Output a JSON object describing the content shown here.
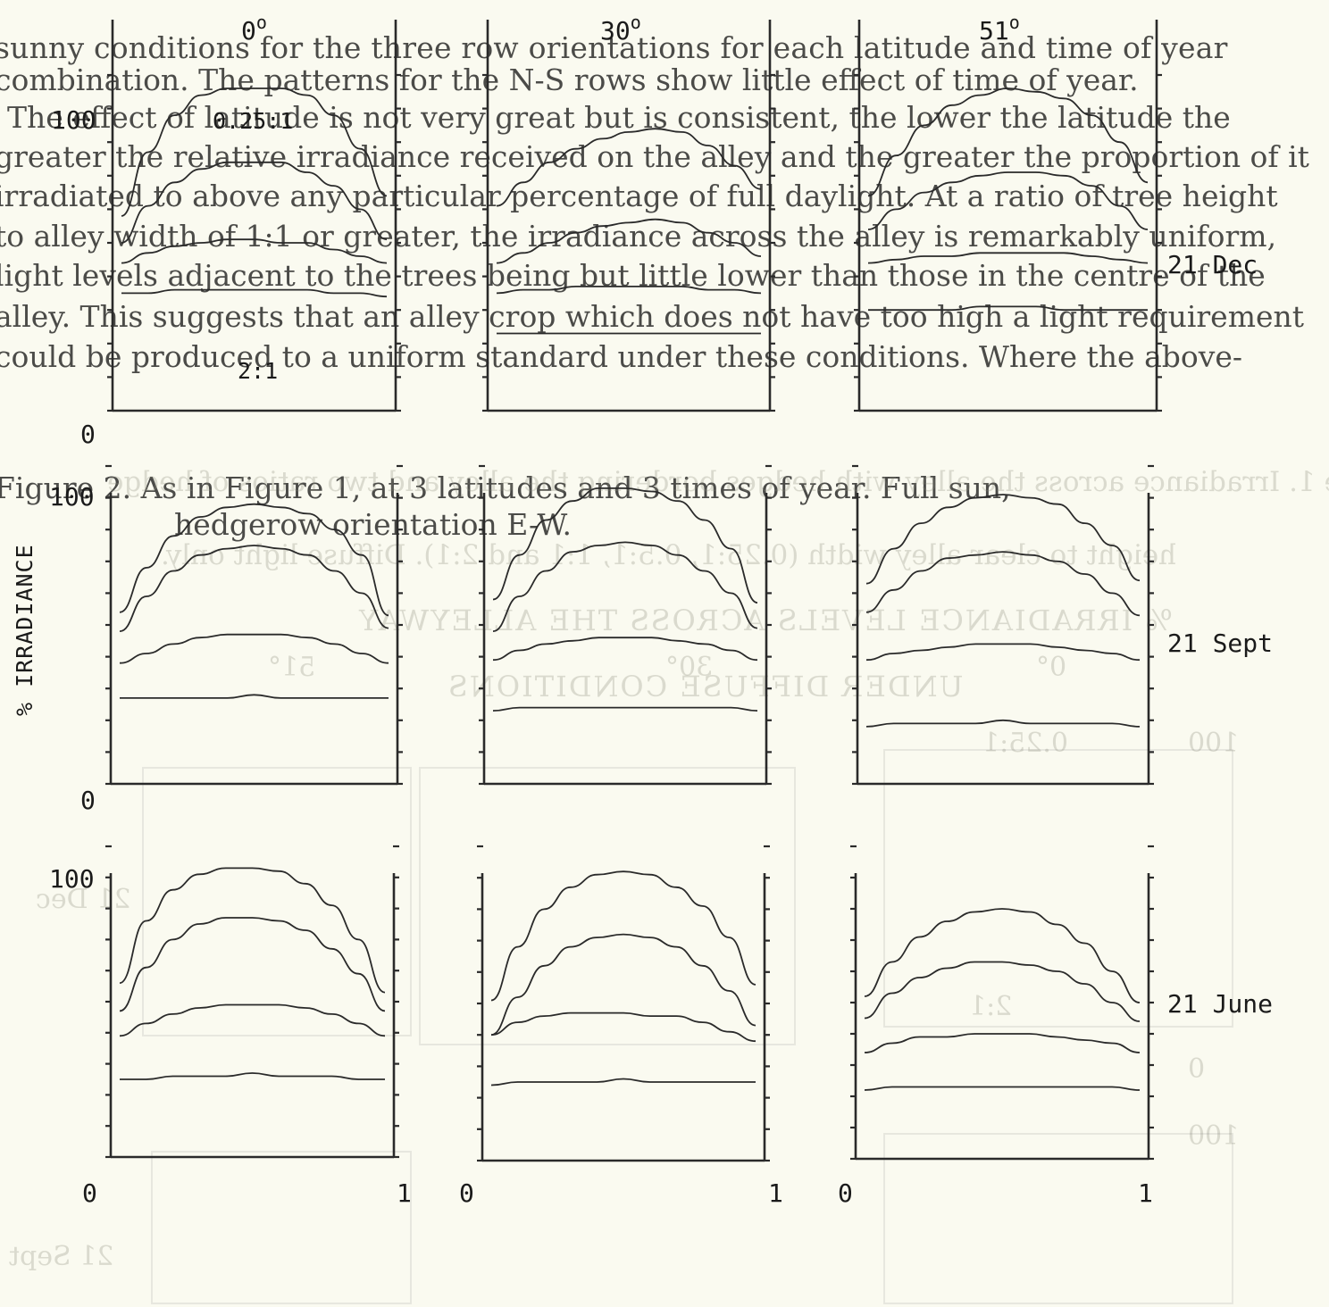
{
  "bleed_text": {
    "lines": [
      "sunny conditions for the three row orientations for each latitude and time of year",
      "combination. The patterns for the N-S rows show little effect of time of year.",
      "The effect of latitude is not very great but is consistent, the lower the latitude the",
      "greater the relative irradiance received on the alley and the greater the proportion of it",
      "irradiated to above any particular percentage of full daylight. At a ratio of tree height",
      "to alley width of 1:1 or greater, the irradiance across the alley is remarkably uniform,",
      "light levels adjacent to the trees being but little lower than those in the centre of the",
      "alley. This suggests that an alley crop which does not have too high a light requirement",
      "could be produced to a uniform standard under these conditions. Where the above-"
    ],
    "caption_line1": "Figure 2.  As in Figure 1, at 3 latitudes and 3 times of year. Full sun,",
    "caption_line2": "hedgerow orientation E-W."
  },
  "mirrored_bleed": {
    "caption_line1": "Figure 1. Irradiance across the alley with hedges bordering the alley and two ratios of hedge",
    "caption_line2": "height to clear alley width (0.25:1, 0.5:1, 1:1 and 2:1). Diffuse light only.",
    "heading_line1": "% IRRADIANCE LEVELS ACROSS THE ALLEYWAY",
    "heading_line2": "UNDER DIFFUSE CONDITIONS",
    "labels": [
      "51°",
      "30°",
      "0°",
      "0.25:1",
      "100",
      "21 Dec",
      "2:1",
      "0",
      "100",
      "21 Sept",
      "IRRADIANCE"
    ]
  },
  "figure": {
    "ylabel": "% IRRADIANCE",
    "y_top_label": "100",
    "y_bottom_label": "0",
    "x_left_label": "0",
    "x_right_label": "1",
    "ratio_label_top": "0.25:1",
    "ratio_label_bottom": "2:1",
    "columns": [
      {
        "title_base": "0",
        "title_sup": "o"
      },
      {
        "title_base": "30",
        "title_sup": "o"
      },
      {
        "title_base": "51",
        "title_sup": "o"
      }
    ],
    "rows": [
      "21 Dec",
      "21 Sept",
      "21 June"
    ],
    "line_color": "#2a2a2a"
  },
  "chart_data": {
    "type": "line",
    "title": "",
    "xlabel": "",
    "ylabel": "% IRRADIANCE",
    "xlim": [
      0,
      1
    ],
    "ylim": [
      0,
      100
    ],
    "x": [
      0,
      0.1,
      0.2,
      0.3,
      0.4,
      0.5,
      0.6,
      0.7,
      0.8,
      0.9,
      1.0
    ],
    "series_names": [
      "0.25:1",
      "0.5:1",
      "1:1",
      "2:1"
    ],
    "panels": [
      {
        "row": "21 Dec",
        "latitude": "0°",
        "series": [
          {
            "name": "0.25:1",
            "values": [
              58,
              77,
              88,
              94,
              96,
              96,
              96,
              94,
              88,
              78,
              64
            ]
          },
          {
            "name": "0.5:1",
            "values": [
              50,
              61,
              68,
              72,
              74,
              74,
              74,
              71,
              67,
              60,
              51
            ]
          },
          {
            "name": "1:1",
            "values": [
              44,
              47,
              49,
              50,
              51,
              51,
              50,
              50,
              48,
              46,
              44
            ]
          },
          {
            "name": "2:1",
            "values": [
              35,
              35,
              36,
              36,
              36,
              36,
              36,
              36,
              35,
              35,
              34
            ]
          }
        ]
      },
      {
        "row": "21 Dec",
        "latitude": "30°",
        "series": [
          {
            "name": "0.25:1",
            "values": [
              61,
              68,
              74,
              78,
              81,
              83,
              84,
              83,
              79,
              73,
              66
            ]
          },
          {
            "name": "0.5:1",
            "values": [
              44,
              47,
              50,
              53,
              55,
              56,
              57,
              56,
              53,
              50,
              46
            ]
          },
          {
            "name": "1:1",
            "values": [
              35,
              36,
              36,
              37,
              37,
              37,
              37,
              37,
              36,
              36,
              35
            ]
          },
          {
            "name": "2:1",
            "values": [
              23,
              23,
              23,
              23,
              23,
              23,
              23,
              23,
              23,
              23,
              23
            ]
          }
        ]
      },
      {
        "row": "21 Dec",
        "latitude": "51°",
        "series": [
          {
            "name": "0.25:1",
            "values": [
              64,
              76,
              85,
              91,
              94,
              96,
              95,
              93,
              88,
              80,
              68
            ]
          },
          {
            "name": "0.5:1",
            "values": [
              54,
              60,
              65,
              68,
              70,
              71,
              71,
              70,
              67,
              61,
              54
            ]
          },
          {
            "name": "1:1",
            "values": [
              44,
              45,
              46,
              46,
              47,
              47,
              47,
              47,
              46,
              45,
              44
            ]
          },
          {
            "name": "2:1",
            "values": [
              30,
              30,
              30,
              30,
              31,
              31,
              31,
              30,
              30,
              30,
              30
            ]
          }
        ]
      },
      {
        "row": "21 Sept",
        "latitude": "0°",
        "series": [
          {
            "name": "0.25:1",
            "values": [
              54,
              68,
              78,
              84,
              87,
              88,
              87,
              85,
              80,
              72,
              53
            ]
          },
          {
            "name": "0.5:1",
            "values": [
              48,
              59,
              67,
              72,
              74,
              75,
              74,
              72,
              67,
              60,
              49
            ]
          },
          {
            "name": "1:1",
            "values": [
              38,
              41,
              44,
              46,
              47,
              47,
              47,
              46,
              44,
              41,
              38
            ]
          },
          {
            "name": "2:1",
            "values": [
              27,
              27,
              27,
              27,
              27,
              28,
              27,
              27,
              27,
              27,
              27
            ]
          }
        ]
      },
      {
        "row": "21 Sept",
        "latitude": "30°",
        "series": [
          {
            "name": "0.25:1",
            "values": [
              58,
              72,
              83,
              89,
              93,
              93,
              92,
              89,
              83,
              74,
              57
            ]
          },
          {
            "name": "0.5:1",
            "values": [
              48,
              59,
              67,
              73,
              75,
              76,
              75,
              72,
              67,
              60,
              49
            ]
          },
          {
            "name": "1:1",
            "values": [
              39,
              42,
              44,
              45,
              46,
              46,
              46,
              45,
              44,
              42,
              39
            ]
          },
          {
            "name": "2:1",
            "values": [
              23,
              24,
              24,
              24,
              24,
              24,
              24,
              24,
              24,
              24,
              23
            ]
          }
        ]
      },
      {
        "row": "21 Sept",
        "latitude": "51°",
        "series": [
          {
            "name": "0.25:1",
            "values": [
              63,
              74,
              82,
              87,
              90,
              91,
              90,
              88,
              82,
              75,
              64
            ]
          },
          {
            "name": "0.5:1",
            "values": [
              54,
              61,
              67,
              71,
              72,
              73,
              72,
              70,
              66,
              60,
              53
            ]
          },
          {
            "name": "1:1",
            "values": [
              39,
              41,
              42,
              43,
              44,
              44,
              44,
              43,
              42,
              41,
              39
            ]
          },
          {
            "name": "2:1",
            "values": [
              18,
              19,
              19,
              19,
              19,
              20,
              19,
              19,
              19,
              19,
              18
            ]
          }
        ]
      },
      {
        "row": "21 June",
        "latitude": "0°",
        "series": [
          {
            "name": "0.25:1",
            "values": [
              56,
              76,
              86,
              91,
              93,
              93,
              92,
              88,
              81,
              70,
              53
            ]
          },
          {
            "name": "0.5:1",
            "values": [
              47,
              61,
              70,
              75,
              77,
              77,
              76,
              73,
              67,
              59,
              47
            ]
          },
          {
            "name": "1:1",
            "values": [
              39,
              43,
              46,
              48,
              49,
              49,
              49,
              48,
              46,
              43,
              39
            ]
          },
          {
            "name": "2:1",
            "values": [
              25,
              25,
              26,
              26,
              26,
              27,
              26,
              26,
              26,
              25,
              25
            ]
          }
        ]
      },
      {
        "row": "21 June",
        "latitude": "30°",
        "series": [
          {
            "name": "0.25:1",
            "values": [
              51,
              68,
              80,
              87,
              91,
              92,
              91,
              87,
              81,
              71,
              56
            ]
          },
          {
            "name": "0.5:1",
            "values": [
              40,
              52,
              62,
              68,
              71,
              72,
              71,
              68,
              62,
              54,
              43
            ]
          },
          {
            "name": "1:1",
            "values": [
              40,
              44,
              46,
              47,
              47,
              47,
              46,
              46,
              44,
              41,
              38
            ]
          },
          {
            "name": "2:1",
            "values": [
              24,
              25,
              25,
              25,
              25,
              26,
              25,
              25,
              25,
              25,
              25
            ]
          }
        ]
      },
      {
        "row": "21 June",
        "latitude": "51°",
        "series": [
          {
            "name": "0.25:1",
            "values": [
              52,
              63,
              71,
              76,
              79,
              80,
              79,
              75,
              69,
              60,
              50
            ]
          },
          {
            "name": "0.5:1",
            "values": [
              45,
              53,
              58,
              61,
              63,
              63,
              62,
              60,
              56,
              50,
              44
            ]
          },
          {
            "name": "1:1",
            "values": [
              34,
              37,
              39,
              39,
              40,
              40,
              40,
              39,
              38,
              37,
              34
            ]
          },
          {
            "name": "2:1",
            "values": [
              22,
              23,
              23,
              23,
              23,
              23,
              23,
              23,
              23,
              23,
              22
            ]
          }
        ]
      }
    ]
  }
}
